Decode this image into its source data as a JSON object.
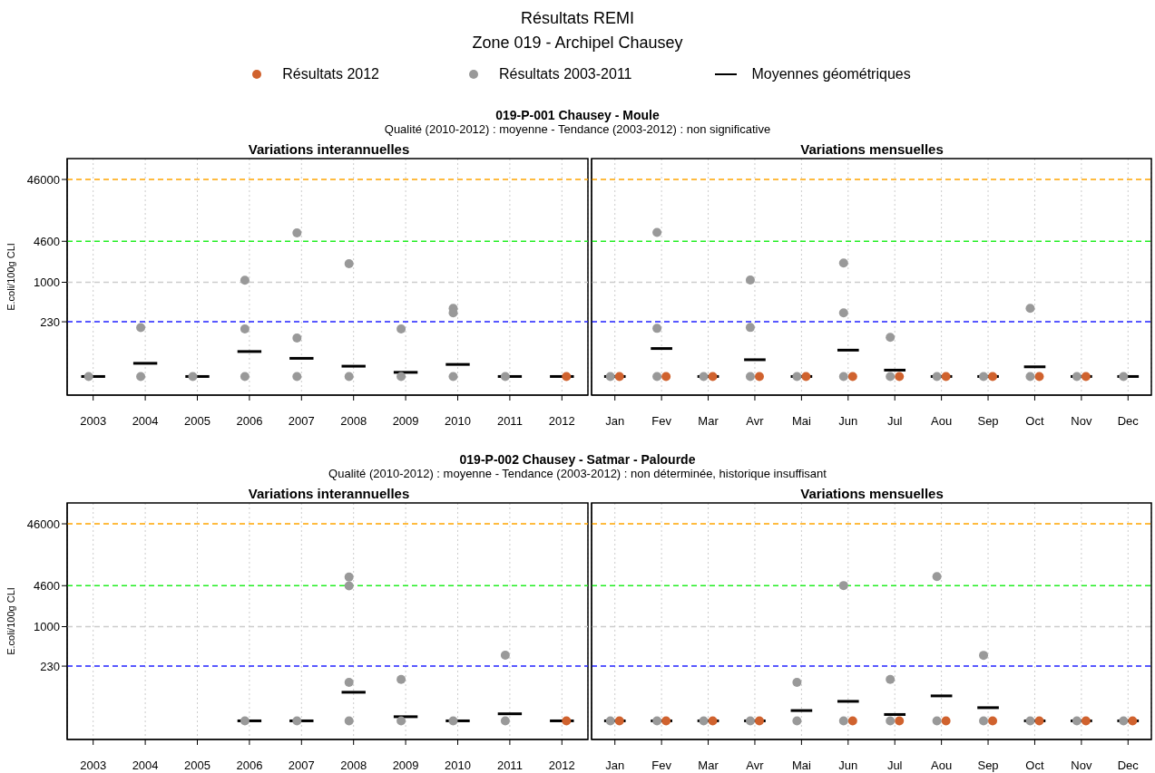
{
  "chart_data": [
    {
      "type": "scatter",
      "title": "Variations interannuelles",
      "ylabel": "E.coli/100g CLI",
      "annotations": [
        "Résultats REMI",
        "Zone 019 - Archipel Chausey",
        "019-P-001 Chausey - Moule",
        "Qualité (2010-2012) :  moyenne  - Tendance (2003-2012) : non significative"
      ],
      "legend": "top",
      "log": "y",
      "grid": "x",
      "marker": "circle",
      "categories": [
        "2003",
        "2004",
        "2005",
        "2006",
        "2007",
        "2008",
        "2009",
        "2010",
        "2011",
        "2012"
      ],
      "ylim": [
        15,
        100000
      ],
      "yticks": [
        230,
        1000,
        4600,
        46000
      ],
      "ref_lines": [
        {
          "axis": "y",
          "value": 46000,
          "color": "#ffa500",
          "line_style": "dashed"
        },
        {
          "axis": "y",
          "value": 4600,
          "color": "#22ee22",
          "line_style": "dashed"
        },
        {
          "axis": "y",
          "value": 1000,
          "color": "#cccccc",
          "line_style": "dashed"
        },
        {
          "axis": "y",
          "value": 230,
          "color": "#2222ff",
          "line_style": "dashed"
        }
      ],
      "series": [
        {
          "name": "Résultats 2012",
          "color": "#d0622e",
          "values": [
            null,
            null,
            null,
            null,
            null,
            null,
            null,
            null,
            null,
            30
          ]
        },
        {
          "name": "Résultats 2003-2011",
          "color": "#999999",
          "values": [
            30,
            30,
            30,
            30,
            30,
            30,
            30,
            30,
            30,
            null
          ]
        },
        {
          "color": "#999999",
          "values": [
            null,
            185,
            null,
            1080,
            6300,
            2000,
            176,
            380,
            null,
            null
          ]
        },
        {
          "color": "#999999",
          "values": [
            null,
            null,
            null,
            176,
            126,
            null,
            null,
            320,
            null,
            null
          ]
        },
        {
          "name": "Moyennes géométriques",
          "type": "box",
          "color": "#000000",
          "boxes": [
            {
              "low": 30,
              "q1": 30,
              "median": 30,
              "q3": 30,
              "high": 30
            },
            {
              "low": 49,
              "q1": 49,
              "median": 49,
              "q3": 49,
              "high": 49
            },
            {
              "low": 30,
              "q1": 30,
              "median": 30,
              "q3": 30,
              "high": 30
            },
            {
              "low": 76,
              "q1": 76,
              "median": 76,
              "q3": 76,
              "high": 76
            },
            {
              "low": 59,
              "q1": 59,
              "median": 59,
              "q3": 59,
              "high": 59
            },
            {
              "low": 44,
              "q1": 44,
              "median": 44,
              "q3": 44,
              "high": 44
            },
            {
              "low": 35,
              "q1": 35,
              "median": 35,
              "q3": 35,
              "high": 35
            },
            {
              "low": 47,
              "q1": 47,
              "median": 47,
              "q3": 47,
              "high": 47
            },
            {
              "low": 30,
              "q1": 30,
              "median": 30,
              "q3": 30,
              "high": 30
            },
            {
              "low": 30,
              "q1": 30,
              "median": 30,
              "q3": 30,
              "high": 30
            }
          ]
        }
      ]
    },
    {
      "type": "scatter",
      "title": "Variations mensuelles",
      "log": "y",
      "grid": "x",
      "marker": "circle",
      "tick_labels": "x",
      "categories": [
        "Jan",
        "Fev",
        "Mar",
        "Avr",
        "Mai",
        "Jun",
        "Jul",
        "Aou",
        "Sep",
        "Oct",
        "Nov",
        "Dec"
      ],
      "ylim": [
        15,
        100000
      ],
      "ref_lines": [
        {
          "axis": "y",
          "value": 46000,
          "color": "#ffa500",
          "line_style": "dashed"
        },
        {
          "axis": "y",
          "value": 4600,
          "color": "#22ee22",
          "line_style": "dashed"
        },
        {
          "axis": "y",
          "value": 1000,
          "color": "#cccccc",
          "line_style": "dashed"
        },
        {
          "axis": "y",
          "value": 230,
          "color": "#2222ff",
          "line_style": "dashed"
        }
      ],
      "series": [
        {
          "color": "#d0622e",
          "values": [
            30,
            30,
            30,
            30,
            30,
            30,
            30,
            30,
            30,
            30,
            30,
            null
          ]
        },
        {
          "color": "#999999",
          "values": [
            30,
            30,
            30,
            30,
            30,
            30,
            30,
            30,
            30,
            30,
            30,
            30
          ]
        },
        {
          "color": "#999999",
          "values": [
            null,
            6400,
            null,
            1090,
            null,
            2050,
            129,
            null,
            null,
            380,
            null,
            null
          ]
        },
        {
          "color": "#999999",
          "values": [
            null,
            180,
            null,
            186,
            null,
            320,
            null,
            null,
            null,
            null,
            null,
            null
          ]
        },
        {
          "type": "box",
          "color": "#000000",
          "boxes": [
            {
              "low": 30,
              "q1": 30,
              "median": 30,
              "q3": 30,
              "high": 30
            },
            {
              "low": 85,
              "q1": 85,
              "median": 85,
              "q3": 85,
              "high": 85
            },
            {
              "low": 30,
              "q1": 30,
              "median": 30,
              "q3": 30,
              "high": 30
            },
            {
              "low": 56,
              "q1": 56,
              "median": 56,
              "q3": 56,
              "high": 56
            },
            {
              "low": 30,
              "q1": 30,
              "median": 30,
              "q3": 30,
              "high": 30
            },
            {
              "low": 80,
              "q1": 80,
              "median": 80,
              "q3": 80,
              "high": 80
            },
            {
              "low": 38,
              "q1": 38,
              "median": 38,
              "q3": 38,
              "high": 38
            },
            {
              "low": 30,
              "q1": 30,
              "median": 30,
              "q3": 30,
              "high": 30
            },
            {
              "low": 30,
              "q1": 30,
              "median": 30,
              "q3": 30,
              "high": 30
            },
            {
              "low": 43,
              "q1": 43,
              "median": 43,
              "q3": 43,
              "high": 43
            },
            {
              "low": 30,
              "q1": 30,
              "median": 30,
              "q3": 30,
              "high": 30
            },
            {
              "low": 30,
              "q1": 30,
              "median": 30,
              "q3": 30,
              "high": 30
            }
          ]
        }
      ]
    },
    {
      "type": "scatter",
      "title": "Variations interannuelles",
      "ylabel": "E.coli/100g CLI",
      "annotations": [
        "019-P-002 Chausey - Satmar - Palourde",
        "Qualité (2010-2012) :  moyenne  - Tendance (2003-2012) : non déterminée, historique insuffisant"
      ],
      "log": "y",
      "grid": "x",
      "marker": "circle",
      "categories": [
        "2003",
        "2004",
        "2005",
        "2006",
        "2007",
        "2008",
        "2009",
        "2010",
        "2011",
        "2012"
      ],
      "ylim": [
        15,
        100000
      ],
      "yticks": [
        230,
        1000,
        4600,
        46000
      ],
      "ref_lines": [
        {
          "axis": "y",
          "value": 46000,
          "color": "#ffa500",
          "line_style": "dashed"
        },
        {
          "axis": "y",
          "value": 4600,
          "color": "#22ee22",
          "line_style": "dashed"
        },
        {
          "axis": "y",
          "value": 1000,
          "color": "#cccccc",
          "line_style": "dashed"
        },
        {
          "axis": "y",
          "value": 230,
          "color": "#2222ff",
          "line_style": "dashed"
        }
      ],
      "series": [
        {
          "color": "#d0622e",
          "values": [
            null,
            null,
            null,
            null,
            null,
            null,
            null,
            null,
            null,
            30
          ]
        },
        {
          "color": "#999999",
          "values": [
            null,
            null,
            null,
            30,
            30,
            30,
            30,
            30,
            30,
            null
          ]
        },
        {
          "color": "#999999",
          "values": [
            null,
            null,
            null,
            null,
            null,
            6350,
            140,
            null,
            346,
            null
          ]
        },
        {
          "color": "#999999",
          "values": [
            null,
            null,
            null,
            null,
            null,
            4560,
            null,
            null,
            null,
            null
          ]
        },
        {
          "color": "#999999",
          "values": [
            null,
            null,
            null,
            null,
            null,
            126,
            null,
            null,
            null,
            null
          ]
        },
        {
          "type": "box",
          "color": "#000000",
          "boxes": [
            null,
            null,
            null,
            {
              "low": 30,
              "q1": 30,
              "median": 30,
              "q3": 30,
              "high": 30
            },
            {
              "low": 30,
              "q1": 30,
              "median": 30,
              "q3": 30,
              "high": 30
            },
            {
              "low": 87,
              "q1": 87,
              "median": 87,
              "q3": 87,
              "high": 87
            },
            {
              "low": 35,
              "q1": 35,
              "median": 35,
              "q3": 35,
              "high": 35
            },
            {
              "low": 30,
              "q1": 30,
              "median": 30,
              "q3": 30,
              "high": 30
            },
            {
              "low": 39,
              "q1": 39,
              "median": 39,
              "q3": 39,
              "high": 39
            },
            {
              "low": 30,
              "q1": 30,
              "median": 30,
              "q3": 30,
              "high": 30
            }
          ]
        }
      ]
    },
    {
      "type": "scatter",
      "title": "Variations mensuelles",
      "log": "y",
      "grid": "x",
      "marker": "circle",
      "tick_labels": "x",
      "categories": [
        "Jan",
        "Fev",
        "Mar",
        "Avr",
        "Mai",
        "Jun",
        "Jul",
        "Aou",
        "Sep",
        "Oct",
        "Nov",
        "Dec"
      ],
      "ylim": [
        15,
        100000
      ],
      "ref_lines": [
        {
          "axis": "y",
          "value": 46000,
          "color": "#ffa500",
          "line_style": "dashed"
        },
        {
          "axis": "y",
          "value": 4600,
          "color": "#22ee22",
          "line_style": "dashed"
        },
        {
          "axis": "y",
          "value": 1000,
          "color": "#cccccc",
          "line_style": "dashed"
        },
        {
          "axis": "y",
          "value": 230,
          "color": "#2222ff",
          "line_style": "dashed"
        }
      ],
      "series": [
        {
          "color": "#d0622e",
          "values": [
            30,
            30,
            30,
            30,
            null,
            30,
            30,
            30,
            30,
            30,
            30,
            30
          ]
        },
        {
          "color": "#999999",
          "values": [
            30,
            30,
            30,
            30,
            30,
            30,
            30,
            30,
            30,
            30,
            30,
            30
          ]
        },
        {
          "color": "#999999",
          "values": [
            null,
            null,
            null,
            null,
            126,
            4620,
            140,
            6470,
            344,
            null,
            null,
            null
          ]
        },
        {
          "type": "box",
          "color": "#000000",
          "boxes": [
            {
              "low": 30,
              "q1": 30,
              "median": 30,
              "q3": 30,
              "high": 30
            },
            {
              "low": 30,
              "q1": 30,
              "median": 30,
              "q3": 30,
              "high": 30
            },
            {
              "low": 30,
              "q1": 30,
              "median": 30,
              "q3": 30,
              "high": 30
            },
            {
              "low": 30,
              "q1": 30,
              "median": 30,
              "q3": 30,
              "high": 30
            },
            {
              "low": 44,
              "q1": 44,
              "median": 44,
              "q3": 44,
              "high": 44
            },
            {
              "low": 62,
              "q1": 62,
              "median": 62,
              "q3": 62,
              "high": 62
            },
            {
              "low": 38,
              "q1": 38,
              "median": 38,
              "q3": 38,
              "high": 38
            },
            {
              "low": 76,
              "q1": 76,
              "median": 76,
              "q3": 76,
              "high": 76
            },
            {
              "low": 49,
              "q1": 49,
              "median": 49,
              "q3": 49,
              "high": 49
            },
            {
              "low": 30,
              "q1": 30,
              "median": 30,
              "q3": 30,
              "high": 30
            },
            {
              "low": 30,
              "q1": 30,
              "median": 30,
              "q3": 30,
              "high": 30
            },
            {
              "low": 30,
              "q1": 30,
              "median": 30,
              "q3": 30,
              "high": 30
            }
          ]
        }
      ]
    }
  ]
}
